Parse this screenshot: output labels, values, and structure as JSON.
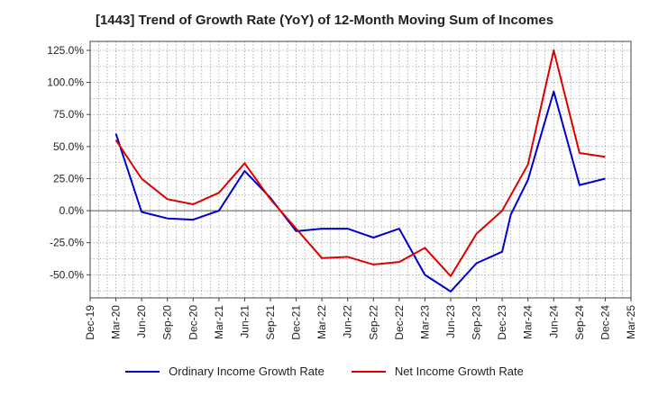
{
  "chart_data": {
    "type": "line",
    "title": "[1443]  Trend of Growth Rate (YoY) of 12-Month Moving Sum of Incomes",
    "xlabel": "",
    "ylabel": "",
    "x_ticks": [
      "Dec-19",
      "Mar-20",
      "Jun-20",
      "Sep-20",
      "Dec-20",
      "Mar-21",
      "Jun-21",
      "Sep-21",
      "Dec-21",
      "Mar-22",
      "Jun-22",
      "Sep-22",
      "Dec-22",
      "Mar-23",
      "Jun-23",
      "Sep-23",
      "Dec-23",
      "Mar-24",
      "Jun-24",
      "Sep-24",
      "Dec-24",
      "Mar-25"
    ],
    "y_ticks": [
      "125.0%",
      "100.0%",
      "75.0%",
      "50.0%",
      "25.0%",
      "0.0%",
      "-25.0%",
      "-50.0%"
    ],
    "y_tick_values": [
      125,
      100,
      75,
      50,
      25,
      0,
      -25,
      -50
    ],
    "ylim": [
      -68,
      132
    ],
    "grid": true,
    "legend_position": "bottom",
    "series": [
      {
        "name": "Ordinary Income Growth Rate",
        "color": "#0000cc",
        "x": [
          "Mar-20",
          "Jun-20",
          "Sep-20",
          "Dec-20",
          "Mar-21",
          "Jun-21",
          "Sep-21",
          "Dec-21",
          "Mar-22",
          "Jun-22",
          "Sep-22",
          "Dec-22",
          "Mar-23",
          "Jun-23",
          "Sep-23",
          "Dec-23",
          "Jan-24",
          "Mar-24",
          "Jun-24",
          "Sep-24",
          "Dec-24"
        ],
        "values": [
          60,
          -1,
          -6,
          -7,
          0,
          31,
          10,
          -16,
          -14,
          -14,
          -21,
          -14,
          -50,
          -63,
          -41,
          -32,
          -3,
          24,
          93,
          20,
          25
        ]
      },
      {
        "name": "Net Income Growth Rate",
        "color": "#dd0000",
        "x": [
          "Mar-20",
          "Jun-20",
          "Sep-20",
          "Dec-20",
          "Mar-21",
          "Jun-21",
          "Sep-21",
          "Dec-21",
          "Mar-22",
          "Jun-22",
          "Sep-22",
          "Dec-22",
          "Mar-23",
          "Jun-23",
          "Sep-23",
          "Dec-23",
          "Mar-24",
          "Jun-24",
          "Sep-24",
          "Dec-24"
        ],
        "values": [
          55,
          25,
          9,
          5,
          14,
          37,
          9,
          -14,
          -37,
          -36,
          -42,
          -40,
          -29,
          -51,
          -18,
          0,
          36,
          125,
          45,
          42
        ]
      }
    ]
  }
}
